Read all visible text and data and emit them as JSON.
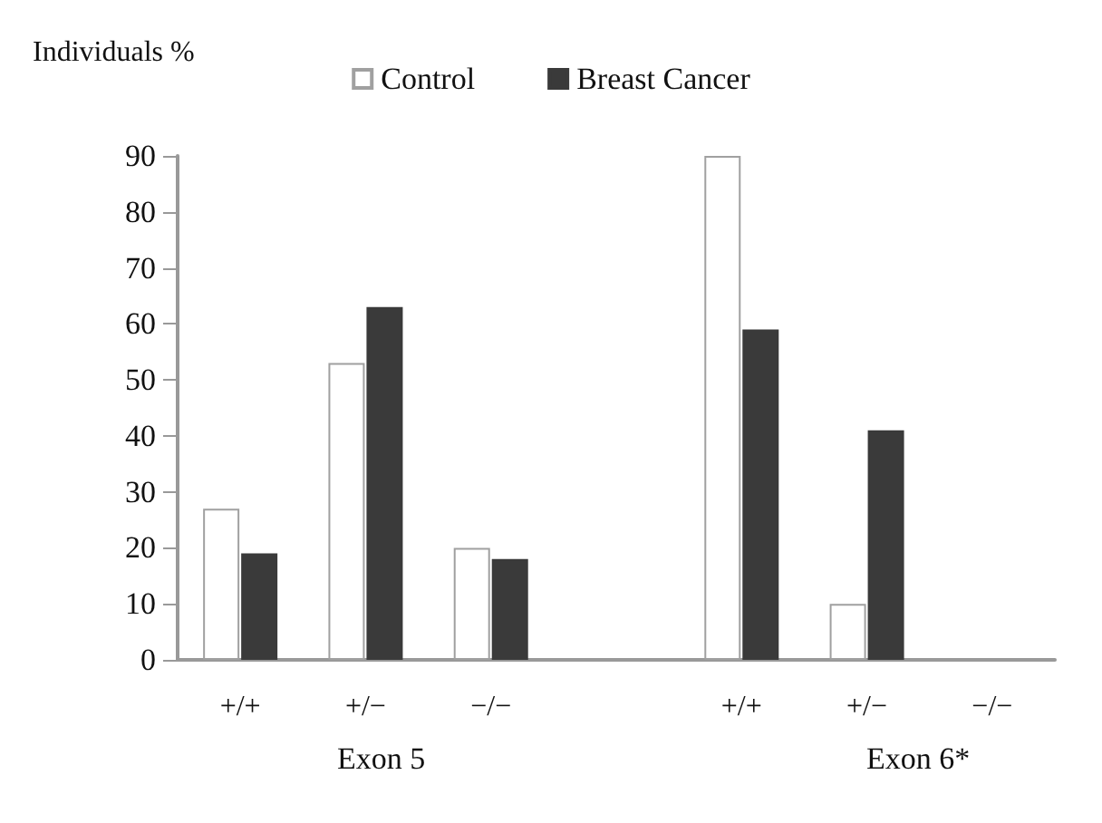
{
  "chart_data": {
    "type": "bar",
    "ylabel": "Individuals %",
    "categories": [
      "+/+",
      "+/−",
      "−/−",
      null,
      "+/+",
      "+/−",
      "−/−"
    ],
    "series": [
      {
        "name": "Control",
        "color": "#ffffff",
        "values": [
          27,
          53,
          20,
          null,
          90,
          10,
          0
        ]
      },
      {
        "name": "Breast Cancer",
        "color": "#3a3a3a",
        "values": [
          19,
          63,
          18,
          null,
          59,
          41,
          0
        ]
      }
    ],
    "ylim": [
      0,
      90
    ],
    "yticks": [
      0,
      10,
      20,
      30,
      40,
      50,
      60,
      70,
      80,
      90
    ],
    "grid": false,
    "legend": "top",
    "annotations": [
      "Exon 5",
      "Exon 6*"
    ]
  }
}
